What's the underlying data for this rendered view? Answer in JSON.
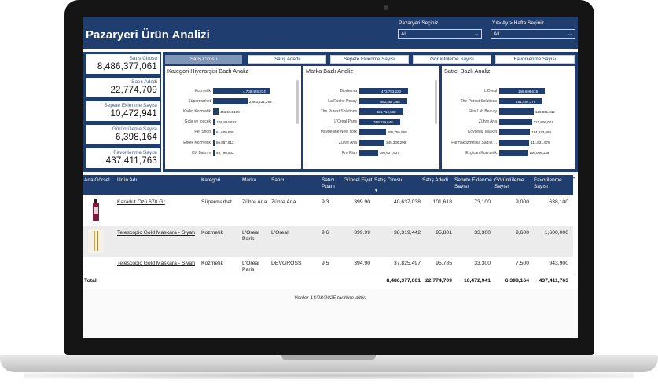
{
  "header": {
    "title": "Pazaryeri Ürün Analizi",
    "slicer_marketplace": {
      "label": "Pazaryeri Seçiniz",
      "value": "All"
    },
    "slicer_period": {
      "label": "Yıl> Ay > Hafta Seçiniz",
      "value": "All"
    }
  },
  "kpis": [
    {
      "label": "Satış Cirosu",
      "value": "8,486,377,061"
    },
    {
      "label": "Satış Adedi",
      "value": "22,774,709"
    },
    {
      "label": "Sepete Eklenme Sayısı",
      "value": "10,472,941"
    },
    {
      "label": "Görüntüleme Sayısı",
      "value": "6,398,164"
    },
    {
      "label": "Favorilenme Sayısı",
      "value": "437,411,763"
    }
  ],
  "tabs": [
    "Satış Cirosu",
    "Satış Adedi",
    "Sepete Eklenme Sayısı",
    "Görüntüleme Sayısı",
    "Favorilenme Sayısı"
  ],
  "active_tab": "Satış Cirosu",
  "chart_data": [
    {
      "type": "bar",
      "title": "Kategori Hiyerarşisi Bazlı Analiz",
      "categories": [
        "Kozmetik",
        "Süpermarket",
        "Kadın Kozmetik",
        "Gıda ve İçecek",
        "Pet Shop",
        "Erkek Kozmetik",
        "Cilt Bakımı"
      ],
      "values": [
        4708425374,
        2863131268,
        441504108,
        169824632,
        61609808,
        66857812,
        59790902
      ],
      "value_labels": [
        "4,708,425,374",
        "2,863,131,268",
        "441,504,108",
        "169,824,632",
        "61,609,808",
        "66,857,812",
        "59,790,902"
      ]
    },
    {
      "type": "bar",
      "title": "Marka Bazlı Analiz",
      "categories": [
        "Bioderma",
        "La Roche Posay",
        "The Purest Solutions",
        "L'Oreal Paris",
        "Maybelline New York",
        "Zühre Ana",
        "Pro Plan"
      ],
      "values": [
        473783220,
        463367368,
        424710532,
        398119642,
        256755568,
        245300299,
        180637937
      ],
      "value_labels": [
        "473,783,220",
        "463,367,368",
        "424,710,532",
        "398,119,642",
        "256,755,568",
        "245,300,299",
        "180,637,937"
      ]
    },
    {
      "type": "bar",
      "title": "Satıcı Bazlı Analiz",
      "categories": [
        "L'Oreal",
        "The Purest Solutions",
        "Skin Lab Beauty",
        "Zühre Ana",
        "Köyceğiz Market",
        "Farmakozmetika Sağlık ...",
        "Ezgican Kozmetik"
      ],
      "values": [
        169698619,
        161484375,
        128361811,
        121806021,
        114973689,
        111831978,
        106006138
      ],
      "value_labels": [
        "169,698,619",
        "161,484,375",
        "128,361,811",
        "121,806,021",
        "114,973,689",
        "111,831,978",
        "106,006,138"
      ]
    }
  ],
  "table": {
    "columns": [
      "Ana Görsel",
      "Ürün Adı",
      "Kategori",
      "Marka",
      "Satıcı",
      "Satıcı Puanı",
      "Güncel Fiyat",
      "Satış Cirosu",
      "Satış Adedi",
      "Sepete Eklenme Sayısı",
      "Görüntüleme Sayısı",
      "Favorilenme Sayısı"
    ],
    "rows": [
      {
        "product": "Karadut Özü 670 Gr",
        "category": "Süpermarket",
        "brand": "Zühre Ana",
        "seller": "Zühre Ana",
        "rating": "9.3",
        "price": "399.90",
        "revenue": "40,637,038",
        "units": "101,618",
        "cart": "73,100",
        "views": "9,000",
        "favs": "638,100"
      },
      {
        "product": "Telescopic Gold Maskara - Siyah",
        "category": "Kozmetik",
        "brand": "L'Oreal Paris",
        "seller": "L'Oreal",
        "rating": "9.6",
        "price": "399.99",
        "revenue": "38,319,442",
        "units": "95,801",
        "cart": "33,300",
        "views": "9,600",
        "favs": "1,600,000"
      },
      {
        "product": "Telescopic Gold Maskara - Siyah",
        "category": "Kozmetik",
        "brand": "L'Oreal Paris",
        "seller": "DEVGROSS",
        "rating": "9.5",
        "price": "394.90",
        "revenue": "37,825,497",
        "units": "95,785",
        "cart": "33,300",
        "views": "7,500",
        "favs": "943,900"
      }
    ],
    "total": {
      "label": "Total",
      "revenue": "8,486,377,061",
      "units": "22,774,709",
      "cart": "10,472,941",
      "views": "6,398,164",
      "favs": "437,411,763"
    }
  },
  "footnote": "Veriler 14/08/2025  tarihine aittir.",
  "colors": {
    "brand_navy": "#1f3d6e",
    "active_tab": "#7f96b8"
  }
}
